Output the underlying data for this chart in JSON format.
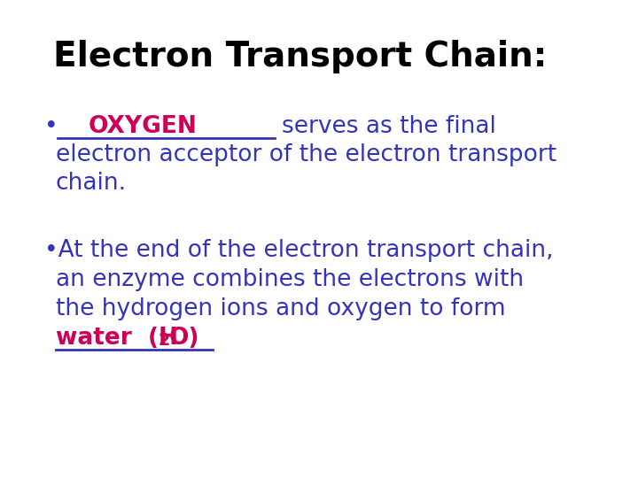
{
  "title": "Electron Transport Chain:",
  "title_color": "#000000",
  "title_fontsize": 28,
  "title_fontweight": "bold",
  "bg_color": "#ffffff",
  "blue_color": "#3333bb",
  "pink_color": "#cc0055",
  "underline_color": "#3333bb",
  "body_fontsize": 19,
  "bullet1_answer": "OXYGEN",
  "bullet2_line1": "•At the end of the electron transport chain,",
  "bullet2_line2": "an enzyme combines the electrons with",
  "bullet2_line3": "the hydrogen ions and oxygen to form"
}
